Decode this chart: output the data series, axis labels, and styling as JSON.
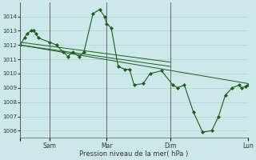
{
  "title": "Pression niveau de la mer( hPa )",
  "bg_color": "#cce8e8",
  "grid_color": "#aacccc",
  "line_color": "#1a5c1a",
  "marker_color": "#1a5c1a",
  "ylim": [
    1005.5,
    1015.0
  ],
  "yticks": [
    1006,
    1007,
    1008,
    1009,
    1010,
    1011,
    1012,
    1013,
    1014
  ],
  "vline_positions": [
    0.0,
    0.13,
    0.38,
    0.66,
    1.0
  ],
  "xlim": [
    0.0,
    1.0
  ],
  "xtick_positions": [
    0.0,
    0.13,
    0.38,
    0.66,
    1.0
  ],
  "xtick_labels": [
    "",
    "Sam",
    "Mar",
    "Dim",
    "Lun"
  ],
  "series": [
    {
      "x": [
        0.0,
        0.02,
        0.03,
        0.05,
        0.06,
        0.07,
        0.08,
        0.13,
        0.16,
        0.19,
        0.21,
        0.23,
        0.26,
        0.28,
        0.32,
        0.35,
        0.37,
        0.38,
        0.4,
        0.43,
        0.46,
        0.48,
        0.5,
        0.54,
        0.57,
        0.62,
        0.67,
        0.69,
        0.72,
        0.76,
        0.8,
        0.84,
        0.87,
        0.9,
        0.93,
        0.96,
        0.97,
        0.99,
        1.0
      ],
      "y": [
        1012.0,
        1012.5,
        1012.8,
        1013.0,
        1013.0,
        1012.8,
        1012.5,
        1012.2,
        1012.0,
        1011.5,
        1011.2,
        1011.5,
        1011.2,
        1011.5,
        1014.2,
        1014.5,
        1014.0,
        1013.5,
        1013.2,
        1010.5,
        1010.3,
        1010.3,
        1009.2,
        1009.3,
        1010.0,
        1010.2,
        1009.2,
        1009.0,
        1009.2,
        1007.3,
        1005.9,
        1006.0,
        1007.0,
        1008.5,
        1009.0,
        1009.2,
        1009.0,
        1009.1,
        1009.2
      ],
      "marker": true
    },
    {
      "x": [
        0.0,
        1.0
      ],
      "y": [
        1012.0,
        1009.3
      ],
      "marker": false
    },
    {
      "x": [
        0.0,
        0.66
      ],
      "y": [
        1012.2,
        1010.8
      ],
      "marker": false
    },
    {
      "x": [
        0.0,
        0.66
      ],
      "y": [
        1012.0,
        1010.5
      ],
      "marker": false
    }
  ]
}
